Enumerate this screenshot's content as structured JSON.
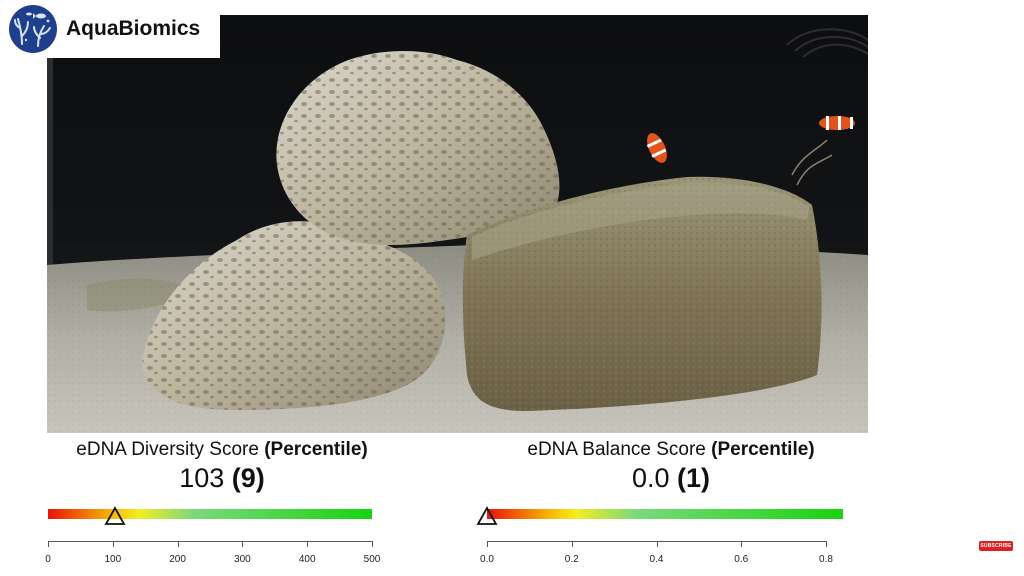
{
  "brand": {
    "name": "AquaBiomics",
    "logo_icon": "coral-fish-logo-icon",
    "colors": {
      "badge_bg": "#1f3f8c",
      "badge_pattern": "#d9e4f5"
    }
  },
  "photo": {
    "icon": "aquarium-photo"
  },
  "diversity": {
    "title": "eDNA Diversity Score ",
    "title_bold": "(Percentile)",
    "score": "103 ",
    "percentile": "(9)",
    "value": 103,
    "axis": {
      "min": 0,
      "max": 500,
      "ticks": [
        "0",
        "100",
        "200",
        "300",
        "400",
        "500"
      ]
    }
  },
  "balance": {
    "title": "eDNA Balance Score ",
    "title_bold": "(Percentile)",
    "score": "0.0 ",
    "percentile": "(1)",
    "value": 0.0,
    "axis": {
      "min": 0.0,
      "max": 0.8,
      "ticks": [
        "0.0",
        "0.2",
        "0.4",
        "0.6",
        "0.8"
      ]
    }
  },
  "subscribe": {
    "label": "SUBSCRIBE"
  }
}
